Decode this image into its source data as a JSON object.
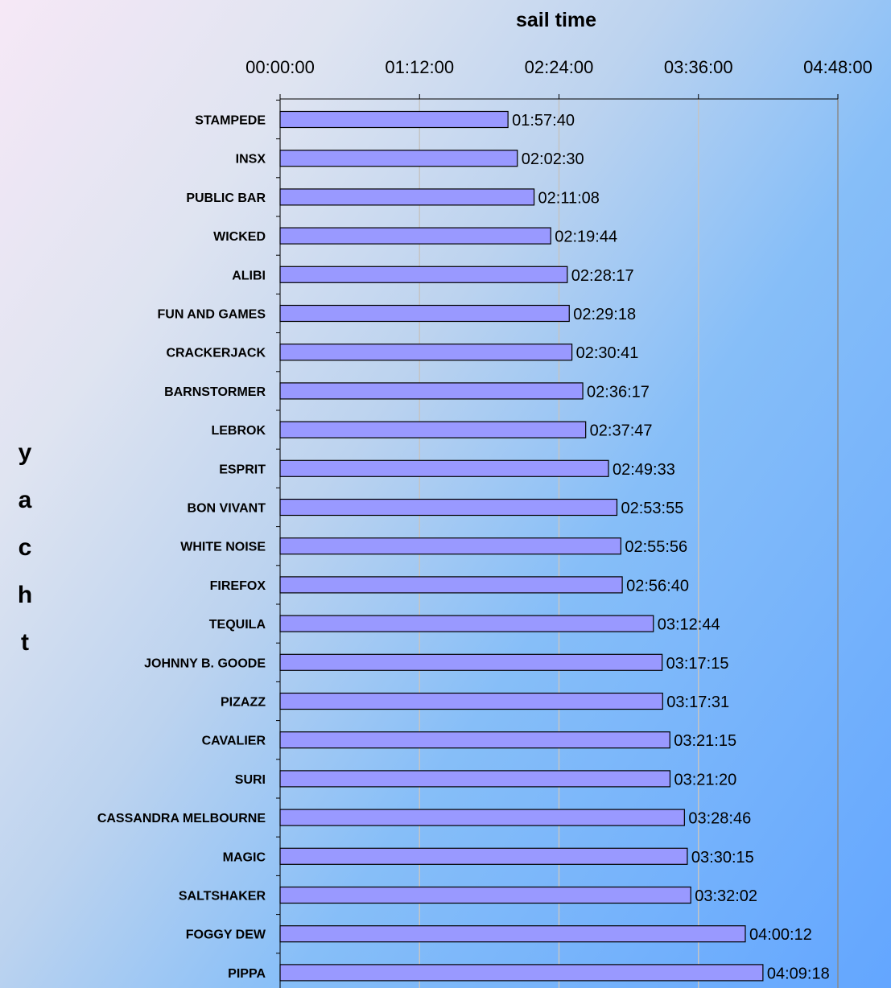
{
  "chart_data": {
    "type": "bar",
    "orientation": "horizontal",
    "xlabel": "sail time",
    "ylabel": "yacht",
    "x_axis_position": "top",
    "x_tick_labels": [
      "00:00:00",
      "01:12:00",
      "02:24:00",
      "03:36:00",
      "04:48:00"
    ],
    "xlim_seconds": [
      0,
      17280
    ],
    "grid": "vertical",
    "categories": [
      "STAMPEDE",
      "INSX",
      "PUBLIC BAR",
      "WICKED",
      "ALIBI",
      "FUN AND GAMES",
      "CRACKERJACK",
      "BARNSTORMER",
      "LEBROK",
      "ESPRIT",
      "BON VIVANT",
      "WHITE NOISE",
      "FIREFOX",
      "TEQUILA",
      "JOHNNY B. GOODE",
      "PIZAZZ",
      "CAVALIER",
      "SURI",
      "CASSANDRA MELBOURNE",
      "MAGIC",
      "SALTSHAKER",
      "FOGGY DEW",
      "PIPPA"
    ],
    "value_labels": [
      "01:57:40",
      "02:02:30",
      "02:11:08",
      "02:19:44",
      "02:28:17",
      "02:29:18",
      "02:30:41",
      "02:36:17",
      "02:37:47",
      "02:49:33",
      "02:53:55",
      "02:55:56",
      "02:56:40",
      "03:12:44",
      "03:17:15",
      "03:17:31",
      "03:21:15",
      "03:21:20",
      "03:28:46",
      "03:30:15",
      "03:32:02",
      "04:00:12",
      "04:09:18"
    ],
    "values_seconds": [
      7060,
      7350,
      7868,
      8384,
      8897,
      8958,
      9041,
      9377,
      9467,
      10173,
      10435,
      10556,
      10600,
      11564,
      11835,
      11851,
      12075,
      12080,
      12526,
      12615,
      12722,
      14412,
      14958
    ],
    "bar_color": "#9999ff",
    "bar_edge_color": "#000000"
  }
}
